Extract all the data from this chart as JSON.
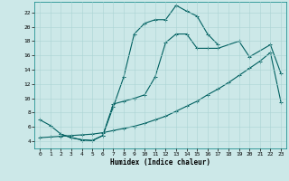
{
  "bg_color": "#cce8e8",
  "grid_color": "#aad4d4",
  "line_color": "#006060",
  "line_width": 0.8,
  "marker": "+",
  "marker_size": 2.5,
  "marker_edge_width": 0.7,
  "xlabel": "Humidex (Indice chaleur)",
  "xlabel_fontsize": 5.5,
  "xlabel_fontfamily": "monospace",
  "xlabel_bold": true,
  "tick_fontsize": 4.5,
  "tick_fontfamily": "monospace",
  "xlim": [
    -0.5,
    23.5
  ],
  "ylim": [
    3.0,
    23.5
  ],
  "yticks": [
    4,
    6,
    8,
    10,
    12,
    14,
    16,
    18,
    20,
    22
  ],
  "xticks": [
    0,
    1,
    2,
    3,
    4,
    5,
    6,
    7,
    8,
    9,
    10,
    11,
    12,
    13,
    14,
    15,
    16,
    17,
    18,
    19,
    20,
    21,
    22,
    23
  ],
  "line1_x": [
    0,
    1,
    2,
    3,
    4,
    5,
    6,
    7,
    8,
    9,
    10,
    11,
    12,
    13,
    14,
    15,
    16,
    17,
    19,
    20,
    22,
    23
  ],
  "line1_y": [
    7.0,
    6.2,
    5.0,
    4.5,
    4.2,
    4.1,
    4.8,
    9.2,
    9.6,
    10.0,
    10.5,
    13.0,
    17.8,
    19.0,
    19.0,
    17.0,
    17.0,
    17.0,
    18.0,
    15.8,
    17.5,
    13.5
  ],
  "line2_x": [
    2,
    3,
    4,
    5,
    6,
    7,
    8,
    9,
    10,
    11,
    12,
    13,
    14,
    15,
    16,
    17
  ],
  "line2_y": [
    5.0,
    4.5,
    4.2,
    4.1,
    4.8,
    8.8,
    13.0,
    19.0,
    20.5,
    21.0,
    21.0,
    23.0,
    22.2,
    21.5,
    19.0,
    17.5
  ],
  "line3_x": [
    0,
    1,
    2,
    3,
    4,
    5,
    6,
    7,
    8,
    9,
    10,
    11,
    12,
    13,
    14,
    15,
    16,
    17,
    18,
    19,
    20,
    21,
    22,
    23
  ],
  "line3_y": [
    4.5,
    4.6,
    4.7,
    4.8,
    4.9,
    5.0,
    5.2,
    5.5,
    5.8,
    6.1,
    6.5,
    7.0,
    7.5,
    8.2,
    8.9,
    9.6,
    10.5,
    11.3,
    12.2,
    13.2,
    14.2,
    15.2,
    16.4,
    9.5
  ]
}
